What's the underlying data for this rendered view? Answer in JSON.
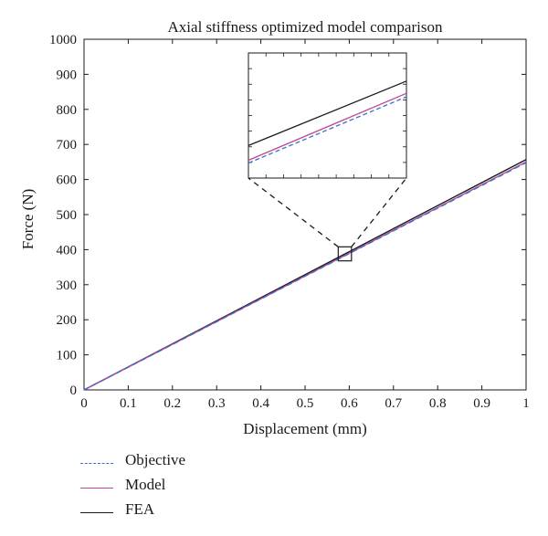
{
  "chart_data": {
    "type": "line",
    "title": "Axial stiffness optimized model comparison",
    "xlabel": "Displacement (mm)",
    "ylabel": "Force (N)",
    "xlim": [
      0,
      1
    ],
    "ylim": [
      0,
      1000
    ],
    "x_ticks": [
      "0",
      "0.1",
      "0.2",
      "0.3",
      "0.4",
      "0.5",
      "0.6",
      "0.7",
      "0.8",
      "0.9",
      "1"
    ],
    "y_ticks": [
      "0",
      "100",
      "200",
      "300",
      "400",
      "500",
      "600",
      "700",
      "800",
      "900",
      "1000"
    ],
    "grid": false,
    "legend_position": "bottom-left, below axes",
    "series": [
      {
        "name": "Objective",
        "x": [
          0,
          1
        ],
        "y": [
          0,
          648
        ],
        "color": "#3b6fd0",
        "style": "dashed"
      },
      {
        "name": "Model",
        "x": [
          0,
          1
        ],
        "y": [
          0,
          650
        ],
        "color": "#c2468f",
        "style": "solid"
      },
      {
        "name": "FEA",
        "x": [
          0,
          1
        ],
        "y": [
          0,
          657
        ],
        "color": "#1a1a1a",
        "style": "solid"
      }
    ],
    "inset": {
      "zoom_x": [
        0.575,
        0.605
      ],
      "zoom_y": [
        368,
        408
      ],
      "series_endpoints": [
        {
          "name": "Objective",
          "y": [
            372.8,
            394.0
          ]
        },
        {
          "name": "Model",
          "y": [
            373.7,
            395.1
          ]
        },
        {
          "name": "FEA",
          "y": [
            378.4,
            399.0
          ]
        }
      ]
    }
  }
}
